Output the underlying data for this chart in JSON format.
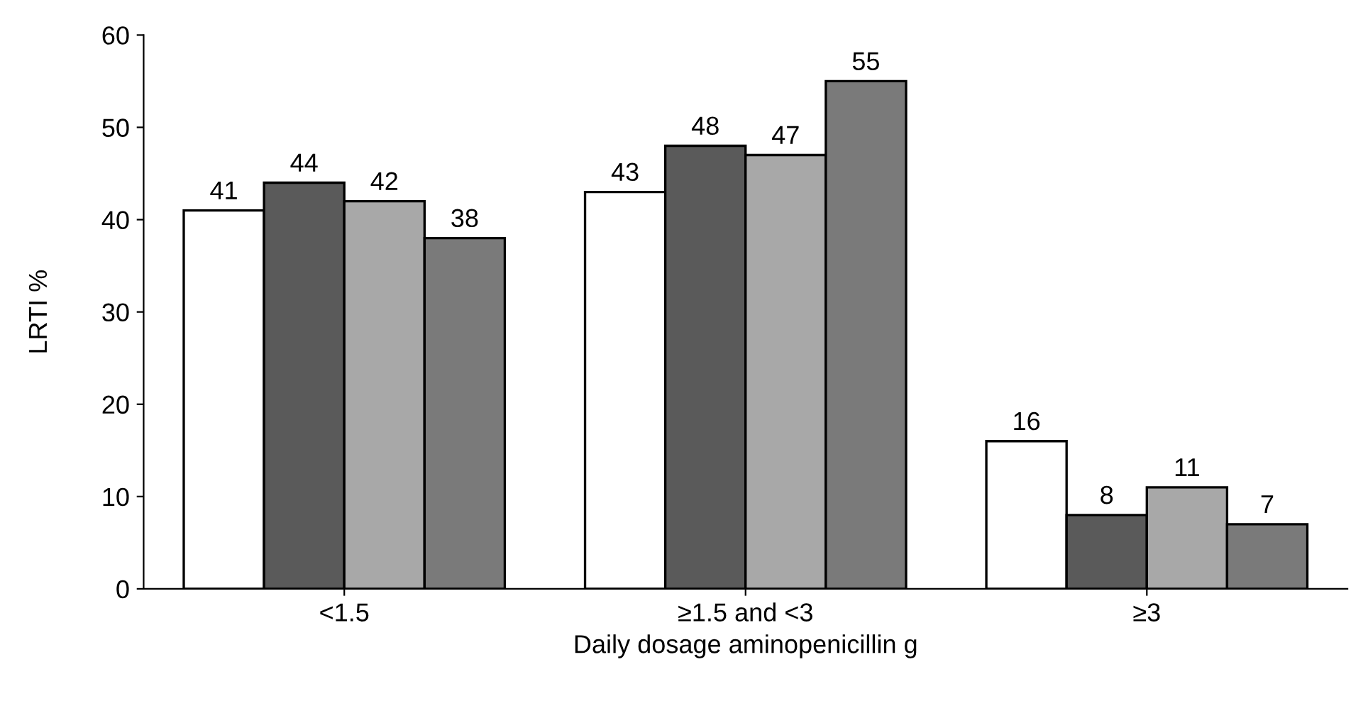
{
  "chart_data": {
    "type": "bar",
    "xlabel": "Daily dosage aminopenicillin g",
    "ylabel": "LRTI %",
    "categories": [
      "<1.5",
      "≥1.5 and <3",
      "≥3"
    ],
    "series": [
      {
        "color": "#ffffff",
        "values": [
          41,
          43,
          16
        ]
      },
      {
        "color": "#5a5a5a",
        "values": [
          44,
          48,
          8
        ]
      },
      {
        "color": "#a8a8a8",
        "values": [
          42,
          47,
          11
        ]
      },
      {
        "color": "#7a7a7a",
        "values": [
          38,
          55,
          7
        ]
      }
    ],
    "ylim": [
      0,
      60
    ],
    "yticks": [
      0,
      10,
      20,
      30,
      40,
      50,
      60
    ],
    "data_labels": true,
    "grid": false,
    "legend": false
  }
}
